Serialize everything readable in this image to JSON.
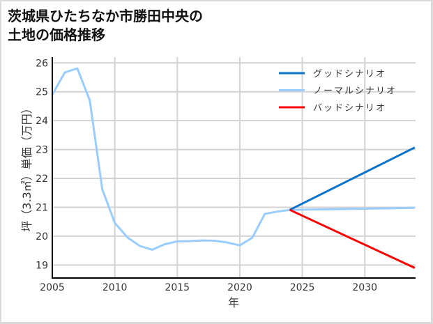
{
  "title_lines": [
    "茨城県ひたちなか市勝田中央の",
    "土地の価格推移"
  ],
  "colors": {
    "good": "#0a72c8",
    "normal": "#99ccff",
    "bad": "#ff0000",
    "grid": "#d3d3d3",
    "axis": "#000000"
  },
  "chart_data": {
    "type": "line",
    "title": "茨城県ひたちなか市勝田中央の土地の価格推移",
    "xlabel": "年",
    "ylabel": "坪（3.3㎡）単価（万円）",
    "xlim": [
      2005,
      2034
    ],
    "ylim": [
      18.55,
      26.2
    ],
    "x_ticks": [
      2005,
      2010,
      2015,
      2020,
      2025,
      2030
    ],
    "y_ticks": [
      19,
      20,
      21,
      22,
      23,
      24,
      25,
      26
    ],
    "grid": true,
    "legend_position": "upper right",
    "legend": [
      "グッドシナリオ",
      "ノーマルシナリオ",
      "バッドシナリオ"
    ],
    "series": [
      {
        "name": "ノーマルシナリオ (実績)",
        "color": "#99ccff",
        "x": [
          2005,
          2006,
          2007,
          2008,
          2009,
          2010,
          2011,
          2012,
          2013,
          2014,
          2015,
          2016,
          2017,
          2018,
          2019,
          2020,
          2021,
          2022,
          2023,
          2024
        ],
        "values": [
          24.9,
          25.67,
          25.81,
          24.7,
          21.62,
          20.46,
          19.96,
          19.66,
          19.53,
          19.72,
          19.82,
          19.83,
          19.85,
          19.84,
          19.78,
          19.68,
          19.95,
          20.77,
          20.85,
          20.91
        ]
      },
      {
        "name": "グッドシナリオ",
        "color": "#0a72c8",
        "x": [
          2024,
          2034
        ],
        "values": [
          20.91,
          23.07
        ]
      },
      {
        "name": "ノーマルシナリオ",
        "color": "#99ccff",
        "x": [
          2024,
          2034
        ],
        "values": [
          20.91,
          20.98
        ]
      },
      {
        "name": "バッドシナリオ",
        "color": "#ff0000",
        "x": [
          2024,
          2034
        ],
        "values": [
          20.91,
          18.9
        ]
      }
    ]
  }
}
